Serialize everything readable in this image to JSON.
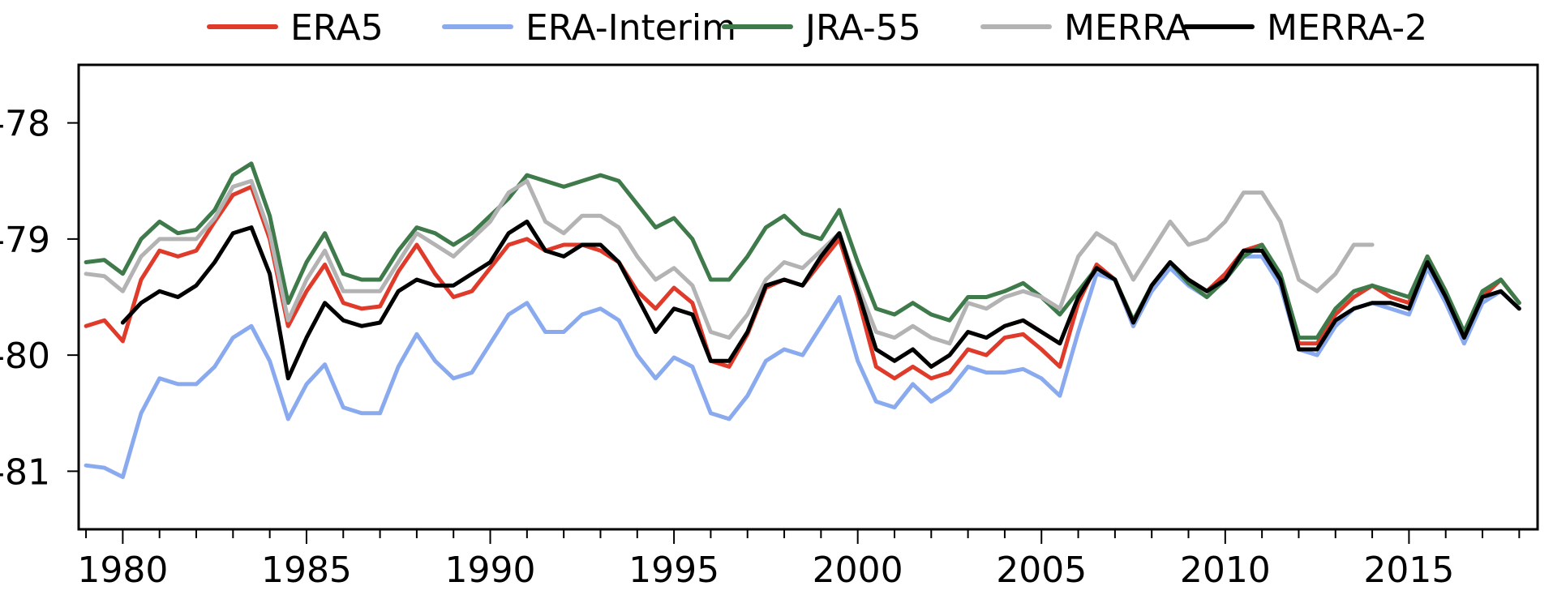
{
  "chart_data": {
    "type": "line",
    "title": "",
    "xlabel": "",
    "ylabel": "",
    "xlim": [
      1978.8,
      2018.5
    ],
    "ylim": [
      -81.5,
      -77.5
    ],
    "x_ticks": [
      1980,
      1985,
      1990,
      1995,
      2000,
      2005,
      2010,
      2015
    ],
    "y_ticks": [
      -78,
      -79,
      -80,
      -81
    ],
    "grid": false,
    "legend_position": "top",
    "series": [
      {
        "name": "ERA5",
        "color": "#e03a2a",
        "x": [
          1979.0,
          1979.5,
          1980.0,
          1980.5,
          1981.0,
          1981.5,
          1982.0,
          1982.5,
          1983.0,
          1983.5,
          1984.0,
          1984.5,
          1985.0,
          1985.5,
          1986.0,
          1986.5,
          1987.0,
          1987.5,
          1988.0,
          1988.5,
          1989.0,
          1989.5,
          1990.0,
          1990.5,
          1991.0,
          1991.5,
          1992.0,
          1992.5,
          1993.0,
          1993.5,
          1994.0,
          1994.5,
          1995.0,
          1995.5,
          1996.0,
          1996.5,
          1997.0,
          1997.5,
          1998.0,
          1998.5,
          1999.0,
          1999.5,
          2000.0,
          2000.5,
          2001.0,
          2001.5,
          2002.0,
          2002.5,
          2003.0,
          2003.5,
          2004.0,
          2004.5,
          2005.0,
          2005.5,
          2006.0,
          2006.5,
          2007.0,
          2007.5,
          2008.0,
          2008.5,
          2009.0,
          2009.5,
          2010.0,
          2010.5,
          2011.0,
          2011.5,
          2012.0,
          2012.5,
          2013.0,
          2013.5,
          2014.0,
          2014.5,
          2015.0,
          2015.5,
          2016.0,
          2016.5,
          2017.0,
          2017.5,
          2018.0
        ],
        "y": [
          -79.75,
          -79.7,
          -79.88,
          -79.35,
          -79.1,
          -79.15,
          -79.1,
          -78.85,
          -78.62,
          -78.55,
          -79.0,
          -79.75,
          -79.45,
          -79.22,
          -79.55,
          -79.6,
          -79.58,
          -79.28,
          -79.05,
          -79.3,
          -79.5,
          -79.45,
          -79.25,
          -79.05,
          -79.0,
          -79.1,
          -79.05,
          -79.05,
          -79.1,
          -79.2,
          -79.45,
          -79.6,
          -79.42,
          -79.55,
          -80.05,
          -80.1,
          -79.82,
          -79.42,
          -79.35,
          -79.4,
          -79.2,
          -79.0,
          -79.5,
          -80.1,
          -80.2,
          -80.1,
          -80.2,
          -80.15,
          -79.95,
          -80.0,
          -79.85,
          -79.82,
          -79.95,
          -80.1,
          -79.55,
          -79.22,
          -79.35,
          -79.75,
          -79.4,
          -79.2,
          -79.35,
          -79.45,
          -79.3,
          -79.1,
          -79.05,
          -79.35,
          -79.9,
          -79.9,
          -79.65,
          -79.5,
          -79.4,
          -79.5,
          -79.55,
          -79.15,
          -79.45,
          -79.85,
          -79.5,
          -79.35,
          -79.55
        ]
      },
      {
        "name": "ERA-Interim",
        "color": "#8aaaf0",
        "x": [
          1979.0,
          1979.5,
          1980.0,
          1980.5,
          1981.0,
          1981.5,
          1982.0,
          1982.5,
          1983.0,
          1983.5,
          1984.0,
          1984.5,
          1985.0,
          1985.5,
          1986.0,
          1986.5,
          1987.0,
          1987.5,
          1988.0,
          1988.5,
          1989.0,
          1989.5,
          1990.0,
          1990.5,
          1991.0,
          1991.5,
          1992.0,
          1992.5,
          1993.0,
          1993.5,
          1994.0,
          1994.5,
          1995.0,
          1995.5,
          1996.0,
          1996.5,
          1997.0,
          1997.5,
          1998.0,
          1998.5,
          1999.0,
          1999.5,
          2000.0,
          2000.5,
          2001.0,
          2001.5,
          2002.0,
          2002.5,
          2003.0,
          2003.5,
          2004.0,
          2004.5,
          2005.0,
          2005.5,
          2006.0,
          2006.5,
          2007.0,
          2007.5,
          2008.0,
          2008.5,
          2009.0,
          2009.5,
          2010.0,
          2010.5,
          2011.0,
          2011.5,
          2012.0,
          2012.5,
          2013.0,
          2013.5,
          2014.0,
          2014.5,
          2015.0,
          2015.5,
          2016.0,
          2016.5,
          2017.0,
          2017.5,
          2018.0
        ],
        "y": [
          -80.95,
          -80.97,
          -81.05,
          -80.5,
          -80.2,
          -80.25,
          -80.25,
          -80.1,
          -79.85,
          -79.75,
          -80.05,
          -80.55,
          -80.25,
          -80.08,
          -80.45,
          -80.5,
          -80.5,
          -80.1,
          -79.82,
          -80.05,
          -80.2,
          -80.15,
          -79.9,
          -79.65,
          -79.55,
          -79.8,
          -79.8,
          -79.65,
          -79.6,
          -79.7,
          -80.0,
          -80.2,
          -80.02,
          -80.1,
          -80.5,
          -80.55,
          -80.35,
          -80.05,
          -79.95,
          -80.0,
          -79.75,
          -79.5,
          -80.05,
          -80.4,
          -80.45,
          -80.25,
          -80.4,
          -80.3,
          -80.1,
          -80.15,
          -80.15,
          -80.12,
          -80.2,
          -80.35,
          -79.8,
          -79.3,
          -79.35,
          -79.75,
          -79.45,
          -79.25,
          -79.4,
          -79.5,
          -79.35,
          -79.15,
          -79.15,
          -79.4,
          -79.95,
          -80.0,
          -79.75,
          -79.6,
          -79.55,
          -79.6,
          -79.65,
          -79.25,
          -79.55,
          -79.9,
          -79.55,
          -79.45,
          -79.6
        ]
      },
      {
        "name": "JRA-55",
        "color": "#3e7a4a",
        "x": [
          1979.0,
          1979.5,
          1980.0,
          1980.5,
          1981.0,
          1981.5,
          1982.0,
          1982.5,
          1983.0,
          1983.5,
          1984.0,
          1984.5,
          1985.0,
          1985.5,
          1986.0,
          1986.5,
          1987.0,
          1987.5,
          1988.0,
          1988.5,
          1989.0,
          1989.5,
          1990.0,
          1990.5,
          1991.0,
          1991.5,
          1992.0,
          1992.5,
          1993.0,
          1993.5,
          1994.0,
          1994.5,
          1995.0,
          1995.5,
          1996.0,
          1996.5,
          1997.0,
          1997.5,
          1998.0,
          1998.5,
          1999.0,
          1999.5,
          2000.0,
          2000.5,
          2001.0,
          2001.5,
          2002.0,
          2002.5,
          2003.0,
          2003.5,
          2004.0,
          2004.5,
          2005.0,
          2005.5,
          2006.0,
          2006.5,
          2007.0,
          2007.5,
          2008.0,
          2008.5,
          2009.0,
          2009.5,
          2010.0,
          2010.5,
          2011.0,
          2011.5,
          2012.0,
          2012.5,
          2013.0,
          2013.5,
          2014.0,
          2014.5,
          2015.0,
          2015.5,
          2016.0,
          2016.5,
          2017.0,
          2017.5,
          2018.0
        ],
        "y": [
          -79.2,
          -79.18,
          -79.3,
          -79.0,
          -78.85,
          -78.95,
          -78.92,
          -78.75,
          -78.45,
          -78.35,
          -78.8,
          -79.55,
          -79.2,
          -78.95,
          -79.3,
          -79.35,
          -79.35,
          -79.1,
          -78.9,
          -78.95,
          -79.05,
          -78.95,
          -78.8,
          -78.65,
          -78.45,
          -78.5,
          -78.55,
          -78.5,
          -78.45,
          -78.5,
          -78.7,
          -78.9,
          -78.82,
          -79.0,
          -79.35,
          -79.35,
          -79.15,
          -78.9,
          -78.8,
          -78.95,
          -79.0,
          -78.75,
          -79.2,
          -79.6,
          -79.65,
          -79.55,
          -79.65,
          -79.7,
          -79.5,
          -79.5,
          -79.45,
          -79.38,
          -79.5,
          -79.65,
          -79.45,
          -79.25,
          -79.35,
          -79.7,
          -79.4,
          -79.2,
          -79.38,
          -79.5,
          -79.35,
          -79.15,
          -79.05,
          -79.3,
          -79.85,
          -79.85,
          -79.6,
          -79.45,
          -79.4,
          -79.45,
          -79.5,
          -79.15,
          -79.45,
          -79.8,
          -79.45,
          -79.35,
          -79.55
        ]
      },
      {
        "name": "MERRA",
        "color": "#b3b3b3",
        "x": [
          1979.0,
          1979.5,
          1980.0,
          1980.5,
          1981.0,
          1981.5,
          1982.0,
          1982.5,
          1983.0,
          1983.5,
          1984.0,
          1984.5,
          1985.0,
          1985.5,
          1986.0,
          1986.5,
          1987.0,
          1987.5,
          1988.0,
          1988.5,
          1989.0,
          1989.5,
          1990.0,
          1990.5,
          1991.0,
          1991.5,
          1992.0,
          1992.5,
          1993.0,
          1993.5,
          1994.0,
          1994.5,
          1995.0,
          1995.5,
          1996.0,
          1996.5,
          1997.0,
          1997.5,
          1998.0,
          1998.5,
          1999.0,
          1999.5,
          2000.0,
          2000.5,
          2001.0,
          2001.5,
          2002.0,
          2002.5,
          2003.0,
          2003.5,
          2004.0,
          2004.5,
          2005.0,
          2005.5,
          2006.0,
          2006.5,
          2007.0,
          2007.5,
          2008.0,
          2008.5,
          2009.0,
          2009.5,
          2010.0,
          2010.5,
          2011.0,
          2011.5,
          2012.0,
          2012.5,
          2013.0,
          2013.5,
          2014.0
        ],
        "y": [
          -79.3,
          -79.32,
          -79.45,
          -79.15,
          -79.0,
          -79.0,
          -79.0,
          -78.82,
          -78.55,
          -78.5,
          -78.95,
          -79.7,
          -79.35,
          -79.1,
          -79.45,
          -79.45,
          -79.45,
          -79.2,
          -78.95,
          -79.05,
          -79.15,
          -79.0,
          -78.85,
          -78.6,
          -78.5,
          -78.85,
          -78.95,
          -78.8,
          -78.8,
          -78.9,
          -79.15,
          -79.35,
          -79.25,
          -79.4,
          -79.8,
          -79.85,
          -79.65,
          -79.35,
          -79.2,
          -79.25,
          -79.1,
          -78.95,
          -79.4,
          -79.8,
          -79.85,
          -79.75,
          -79.85,
          -79.9,
          -79.55,
          -79.6,
          -79.5,
          -79.45,
          -79.5,
          -79.6,
          -79.15,
          -78.95,
          -79.05,
          -79.35,
          -79.1,
          -78.85,
          -79.05,
          -79.0,
          -78.85,
          -78.6,
          -78.6,
          -78.85,
          -79.35,
          -79.45,
          -79.3,
          -79.05,
          -79.05
        ]
      },
      {
        "name": "MERRA-2",
        "color": "#000000",
        "x": [
          1980.0,
          1980.5,
          1981.0,
          1981.5,
          1982.0,
          1982.5,
          1983.0,
          1983.5,
          1984.0,
          1984.5,
          1985.0,
          1985.5,
          1986.0,
          1986.5,
          1987.0,
          1987.5,
          1988.0,
          1988.5,
          1989.0,
          1989.5,
          1990.0,
          1990.5,
          1991.0,
          1991.5,
          1992.0,
          1992.5,
          1993.0,
          1993.5,
          1994.0,
          1994.5,
          1995.0,
          1995.5,
          1996.0,
          1996.5,
          1997.0,
          1997.5,
          1998.0,
          1998.5,
          1999.0,
          1999.5,
          2000.0,
          2000.5,
          2001.0,
          2001.5,
          2002.0,
          2002.5,
          2003.0,
          2003.5,
          2004.0,
          2004.5,
          2005.0,
          2005.5,
          2006.0,
          2006.5,
          2007.0,
          2007.5,
          2008.0,
          2008.5,
          2009.0,
          2009.5,
          2010.0,
          2010.5,
          2011.0,
          2011.5,
          2012.0,
          2012.5,
          2013.0,
          2013.5,
          2014.0,
          2014.5,
          2015.0,
          2015.5,
          2016.0,
          2016.5,
          2017.0,
          2017.5,
          2018.0
        ],
        "y": [
          -79.72,
          -79.55,
          -79.45,
          -79.5,
          -79.4,
          -79.2,
          -78.95,
          -78.9,
          -79.3,
          -80.2,
          -79.85,
          -79.55,
          -79.7,
          -79.75,
          -79.72,
          -79.45,
          -79.35,
          -79.4,
          -79.4,
          -79.3,
          -79.2,
          -78.95,
          -78.85,
          -79.1,
          -79.15,
          -79.05,
          -79.05,
          -79.2,
          -79.5,
          -79.8,
          -79.6,
          -79.65,
          -80.05,
          -80.05,
          -79.8,
          -79.4,
          -79.35,
          -79.4,
          -79.15,
          -78.95,
          -79.45,
          -79.95,
          -80.05,
          -79.95,
          -80.1,
          -80.0,
          -79.8,
          -79.85,
          -79.75,
          -79.7,
          -79.8,
          -79.9,
          -79.5,
          -79.25,
          -79.35,
          -79.72,
          -79.4,
          -79.2,
          -79.35,
          -79.45,
          -79.35,
          -79.1,
          -79.1,
          -79.35,
          -79.95,
          -79.95,
          -79.7,
          -79.6,
          -79.55,
          -79.55,
          -79.6,
          -79.2,
          -79.5,
          -79.85,
          -79.5,
          -79.45,
          -79.6
        ]
      }
    ]
  }
}
